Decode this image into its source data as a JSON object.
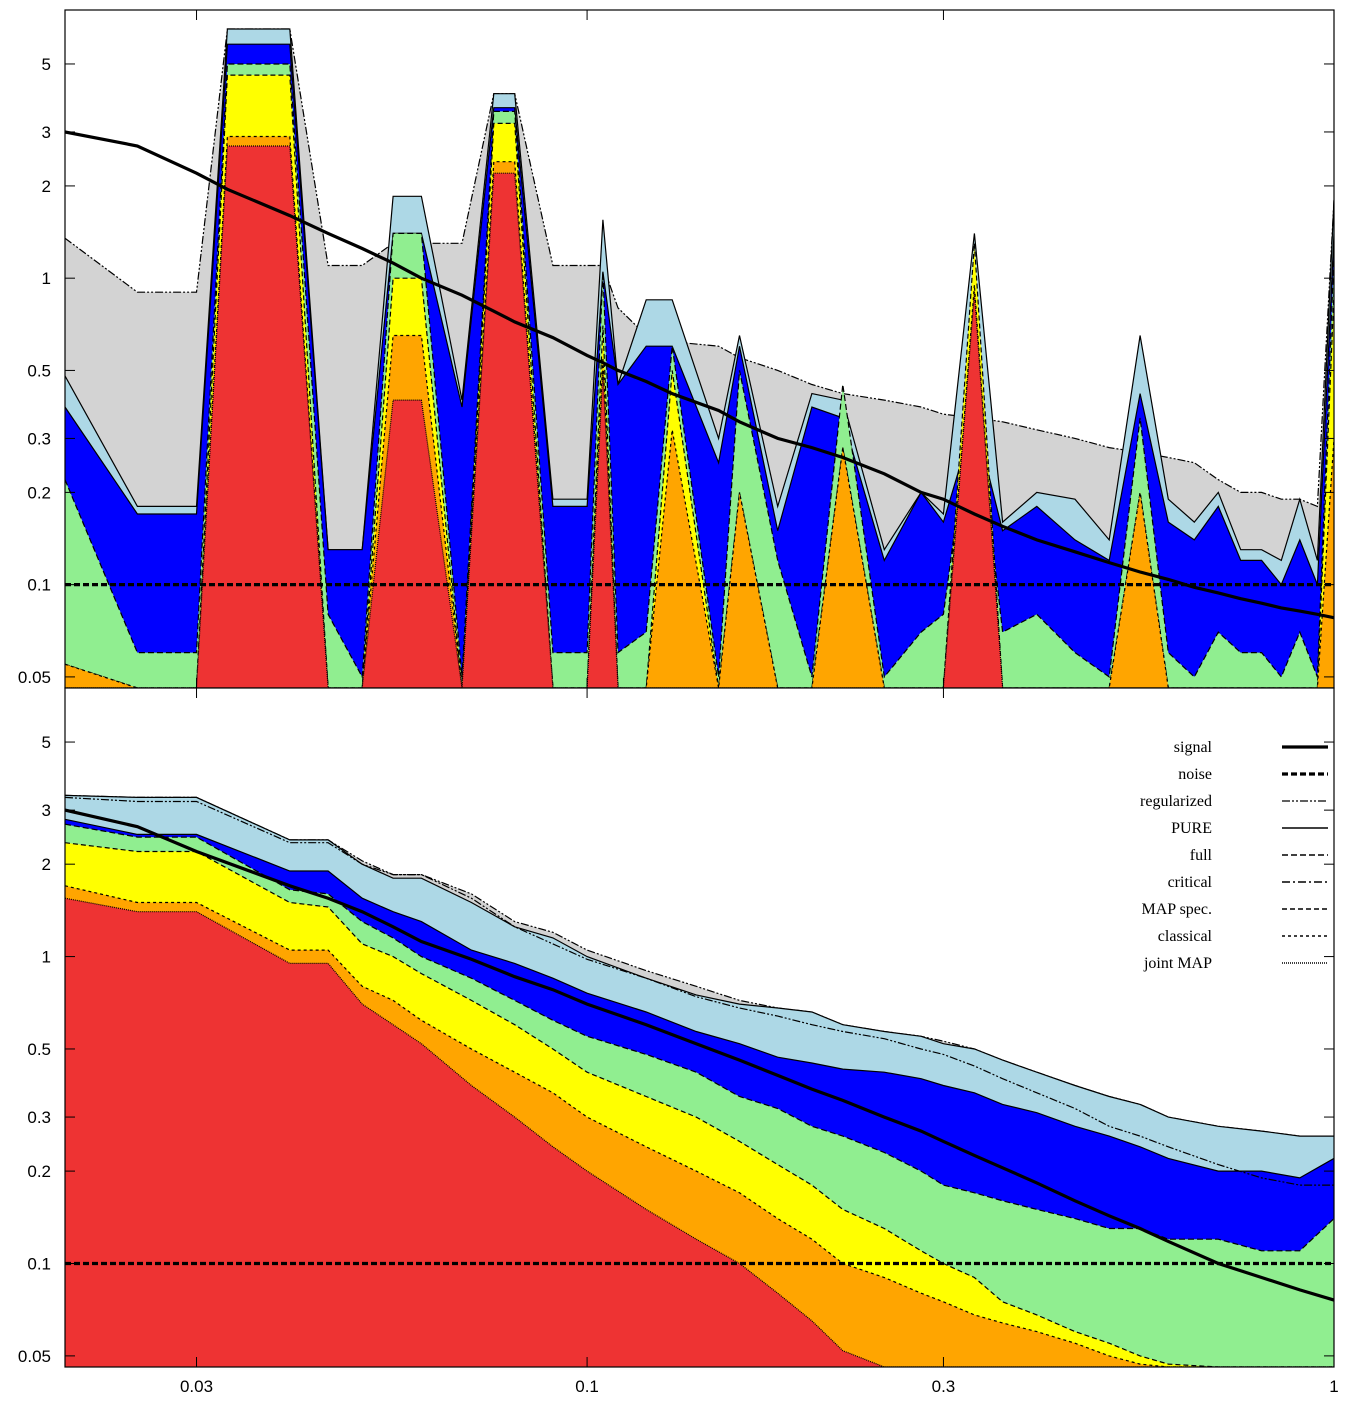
{
  "chart_data": [
    {
      "type": "area",
      "panel": "top",
      "xscale": "log",
      "yscale": "log",
      "xlim": [
        0.02,
        1
      ],
      "ylim": [
        0.046,
        7.5
      ],
      "xticks": [
        {
          "value": 0.03,
          "label": ""
        },
        {
          "value": 0.1,
          "label": "0.1"
        },
        {
          "value": 0.3,
          "label": "0.3"
        }
      ],
      "yticks": [
        {
          "value": 0.05,
          "label": "0.05"
        },
        {
          "value": 0.1,
          "label": "0.1"
        },
        {
          "value": 0.2,
          "label": "0.2"
        },
        {
          "value": 0.3,
          "label": "0.3"
        },
        {
          "value": 0.5,
          "label": "0.5"
        },
        {
          "value": 1,
          "label": "1"
        },
        {
          "value": 2,
          "label": "2"
        },
        {
          "value": 3,
          "label": "3"
        },
        {
          "value": 5,
          "label": "5"
        }
      ],
      "grid": false,
      "x": [
        0.02,
        0.025,
        0.03,
        0.033,
        0.04,
        0.045,
        0.05,
        0.055,
        0.06,
        0.068,
        0.075,
        0.08,
        0.09,
        0.1,
        0.105,
        0.11,
        0.12,
        0.13,
        0.15,
        0.16,
        0.18,
        0.2,
        0.22,
        0.25,
        0.28,
        0.3,
        0.33,
        0.36,
        0.4,
        0.45,
        0.5,
        0.55,
        0.6,
        0.65,
        0.7,
        0.75,
        0.8,
        0.85,
        0.9,
        0.95,
        1.0
      ],
      "series": [
        {
          "name": "joint MAP",
          "fill": "#ee3333",
          "values": [
            0.04,
            0.04,
            0.04,
            2.7,
            2.7,
            0.04,
            0.04,
            0.4,
            0.4,
            0.04,
            2.2,
            2.2,
            0.04,
            0.04,
            0.5,
            0.04,
            0.04,
            0.04,
            0.04,
            0.04,
            0.04,
            0.04,
            0.04,
            0.04,
            0.04,
            0.04,
            0.9,
            0.04,
            0.04,
            0.04,
            0.04,
            0.04,
            0.04,
            0.04,
            0.04,
            0.04,
            0.04,
            0.04,
            0.04,
            0.04,
            0.04
          ]
        },
        {
          "name": "classical",
          "fill": "#ffa500",
          "values": [
            0.055,
            0.04,
            0.04,
            2.9,
            2.9,
            0.04,
            0.04,
            0.65,
            0.65,
            0.04,
            2.4,
            2.4,
            0.04,
            0.04,
            0.55,
            0.04,
            0.04,
            0.32,
            0.04,
            0.2,
            0.04,
            0.04,
            0.28,
            0.04,
            0.04,
            0.04,
            0.95,
            0.04,
            0.04,
            0.04,
            0.04,
            0.2,
            0.04,
            0.04,
            0.04,
            0.04,
            0.04,
            0.04,
            0.04,
            0.04,
            0.3
          ]
        },
        {
          "name": "MAP spec.",
          "fill": "#ffff00",
          "values": [
            0.055,
            0.04,
            0.04,
            4.6,
            4.6,
            0.04,
            0.04,
            1.0,
            1.0,
            0.04,
            3.2,
            3.2,
            0.04,
            0.04,
            0.7,
            0.04,
            0.04,
            0.5,
            0.04,
            0.2,
            0.04,
            0.04,
            0.28,
            0.04,
            0.04,
            0.04,
            1.3,
            0.04,
            0.04,
            0.04,
            0.04,
            0.2,
            0.04,
            0.04,
            0.04,
            0.04,
            0.04,
            0.04,
            0.04,
            0.04,
            0.9
          ]
        },
        {
          "name": "full",
          "fill": "#90ee90",
          "values": [
            0.22,
            0.06,
            0.06,
            5.0,
            5.0,
            0.08,
            0.05,
            1.4,
            1.4,
            0.05,
            3.5,
            3.5,
            0.06,
            0.06,
            1.05,
            0.06,
            0.07,
            0.6,
            0.05,
            0.5,
            0.12,
            0.05,
            0.45,
            0.05,
            0.07,
            0.08,
            0.45,
            0.07,
            0.08,
            0.06,
            0.05,
            0.35,
            0.06,
            0.05,
            0.07,
            0.06,
            0.06,
            0.05,
            0.07,
            0.05,
            1.2
          ]
        },
        {
          "name": "PURE",
          "fill": "#0000ff",
          "values": [
            0.38,
            0.17,
            0.17,
            5.8,
            5.8,
            0.13,
            0.13,
            1.4,
            1.4,
            0.38,
            3.6,
            3.6,
            0.18,
            0.18,
            1.05,
            0.45,
            0.6,
            0.6,
            0.25,
            0.6,
            0.15,
            0.38,
            0.35,
            0.12,
            0.2,
            0.16,
            0.35,
            0.15,
            0.18,
            0.14,
            0.12,
            0.42,
            0.16,
            0.14,
            0.18,
            0.12,
            0.12,
            0.1,
            0.14,
            0.1,
            1.4
          ]
        },
        {
          "name": "regularized",
          "fill": "#add8e6",
          "values": [
            0.48,
            0.18,
            0.18,
            6.5,
            6.5,
            0.13,
            0.13,
            1.85,
            1.85,
            0.4,
            4.0,
            4.0,
            0.19,
            0.19,
            1.55,
            0.45,
            0.85,
            0.85,
            0.3,
            0.65,
            0.18,
            0.42,
            0.4,
            0.13,
            0.2,
            0.17,
            1.4,
            0.16,
            0.2,
            0.19,
            0.14,
            0.65,
            0.19,
            0.16,
            0.2,
            0.13,
            0.13,
            0.12,
            0.19,
            0.12,
            1.8
          ]
        },
        {
          "name": "critical",
          "fill": "#d3d3d3",
          "values": [
            1.35,
            0.9,
            0.9,
            6.5,
            6.5,
            1.1,
            1.1,
            1.3,
            1.3,
            1.3,
            4.0,
            4.0,
            1.1,
            1.1,
            1.1,
            0.8,
            0.65,
            0.62,
            0.6,
            0.55,
            0.5,
            0.45,
            0.42,
            0.4,
            0.38,
            0.36,
            0.35,
            0.34,
            0.32,
            0.3,
            0.28,
            0.27,
            0.26,
            0.25,
            0.22,
            0.2,
            0.2,
            0.19,
            0.19,
            0.18,
            1.8
          ]
        }
      ],
      "lines": [
        {
          "name": "signal",
          "values": [
            3.0,
            2.7,
            2.2,
            1.95,
            1.6,
            1.4,
            1.25,
            1.12,
            1.0,
            0.88,
            0.78,
            0.72,
            0.64,
            0.56,
            0.53,
            0.5,
            0.46,
            0.42,
            0.37,
            0.34,
            0.3,
            0.28,
            0.26,
            0.23,
            0.2,
            0.19,
            0.17,
            0.155,
            0.14,
            0.128,
            0.118,
            0.11,
            0.104,
            0.098,
            0.094,
            0.09,
            0.087,
            0.084,
            0.082,
            0.08,
            0.078
          ]
        },
        {
          "name": "noise",
          "values": [
            0.1,
            0.1,
            0.1,
            0.1,
            0.1,
            0.1,
            0.1,
            0.1,
            0.1,
            0.1,
            0.1,
            0.1,
            0.1,
            0.1,
            0.1,
            0.1,
            0.1,
            0.1,
            0.1,
            0.1,
            0.1,
            0.1,
            0.1,
            0.1,
            0.1,
            0.1,
            0.1,
            0.1,
            0.1,
            0.1,
            0.1,
            0.1,
            0.1,
            0.1,
            0.1,
            0.1,
            0.1,
            0.1,
            0.1,
            0.1,
            0.1
          ]
        }
      ]
    },
    {
      "type": "area",
      "panel": "bottom",
      "xscale": "log",
      "yscale": "log",
      "xlim": [
        0.02,
        1
      ],
      "ylim": [
        0.046,
        7.5
      ],
      "xticks": [
        {
          "value": 0.03,
          "label": "0.03"
        },
        {
          "value": 0.1,
          "label": "0.1"
        },
        {
          "value": 0.3,
          "label": "0.3"
        },
        {
          "value": 1,
          "label": "1"
        }
      ],
      "yticks": [
        {
          "value": 0.05,
          "label": "0.05"
        },
        {
          "value": 0.1,
          "label": "0.1"
        },
        {
          "value": 0.2,
          "label": "0.2"
        },
        {
          "value": 0.3,
          "label": "0.3"
        },
        {
          "value": 0.5,
          "label": "0.5"
        },
        {
          "value": 1,
          "label": "1"
        },
        {
          "value": 2,
          "label": "2"
        },
        {
          "value": 3,
          "label": "3"
        },
        {
          "value": 5,
          "label": "5"
        }
      ],
      "grid": false,
      "legend_position": "top-right",
      "x": [
        0.02,
        0.025,
        0.03,
        0.04,
        0.045,
        0.05,
        0.055,
        0.06,
        0.07,
        0.08,
        0.09,
        0.1,
        0.12,
        0.14,
        0.16,
        0.18,
        0.2,
        0.22,
        0.25,
        0.28,
        0.3,
        0.33,
        0.36,
        0.4,
        0.45,
        0.5,
        0.55,
        0.6,
        0.7,
        0.8,
        0.9,
        1.0
      ],
      "series": [
        {
          "name": "joint MAP",
          "fill": "#ee3333",
          "values": [
            1.55,
            1.4,
            1.4,
            0.95,
            0.95,
            0.7,
            0.6,
            0.52,
            0.38,
            0.3,
            0.24,
            0.2,
            0.15,
            0.12,
            0.1,
            0.08,
            0.065,
            0.052,
            0.046,
            0.046,
            0.046,
            0.046,
            0.046,
            0.046,
            0.046,
            0.046,
            0.046,
            0.046,
            0.046,
            0.046,
            0.046,
            0.046
          ]
        },
        {
          "name": "classical",
          "fill": "#ffa500",
          "values": [
            1.7,
            1.5,
            1.5,
            1.05,
            1.05,
            0.8,
            0.72,
            0.62,
            0.5,
            0.42,
            0.36,
            0.3,
            0.24,
            0.2,
            0.17,
            0.14,
            0.12,
            0.1,
            0.09,
            0.08,
            0.075,
            0.068,
            0.064,
            0.06,
            0.055,
            0.05,
            0.047,
            0.046,
            0.046,
            0.046,
            0.046,
            0.046
          ]
        },
        {
          "name": "MAP spec.",
          "fill": "#ffff00",
          "values": [
            2.35,
            2.2,
            2.2,
            1.5,
            1.45,
            1.1,
            1.0,
            0.88,
            0.72,
            0.6,
            0.5,
            0.42,
            0.35,
            0.3,
            0.25,
            0.21,
            0.18,
            0.15,
            0.13,
            0.11,
            0.1,
            0.09,
            0.075,
            0.068,
            0.06,
            0.055,
            0.05,
            0.047,
            0.046,
            0.046,
            0.046,
            0.046
          ]
        },
        {
          "name": "full",
          "fill": "#90ee90",
          "values": [
            2.7,
            2.45,
            2.45,
            1.65,
            1.6,
            1.3,
            1.15,
            1.0,
            0.85,
            0.72,
            0.62,
            0.55,
            0.48,
            0.42,
            0.35,
            0.32,
            0.28,
            0.26,
            0.23,
            0.2,
            0.18,
            0.17,
            0.16,
            0.15,
            0.14,
            0.13,
            0.13,
            0.12,
            0.12,
            0.11,
            0.11,
            0.14
          ]
        },
        {
          "name": "PURE",
          "fill": "#0000ff",
          "values": [
            2.8,
            2.5,
            2.5,
            1.9,
            1.9,
            1.55,
            1.4,
            1.3,
            1.05,
            0.95,
            0.85,
            0.76,
            0.66,
            0.57,
            0.52,
            0.47,
            0.45,
            0.43,
            0.42,
            0.4,
            0.38,
            0.36,
            0.33,
            0.31,
            0.28,
            0.26,
            0.24,
            0.22,
            0.2,
            0.2,
            0.19,
            0.22
          ]
        },
        {
          "name": "regularized",
          "fill": "#add8e6",
          "values": [
            3.35,
            3.3,
            3.3,
            2.4,
            2.4,
            2.0,
            1.8,
            1.8,
            1.5,
            1.25,
            1.15,
            1.0,
            0.85,
            0.75,
            0.7,
            0.68,
            0.66,
            0.6,
            0.57,
            0.55,
            0.52,
            0.5,
            0.46,
            0.42,
            0.38,
            0.35,
            0.33,
            0.3,
            0.28,
            0.27,
            0.26,
            0.26
          ]
        },
        {
          "name": "critical",
          "fill": "#d3d3d3",
          "values": [
            3.35,
            3.3,
            3.3,
            2.4,
            2.4,
            2.05,
            1.85,
            1.85,
            1.6,
            1.3,
            1.2,
            1.05,
            0.9,
            0.8,
            0.72,
            0.68,
            0.66,
            0.6,
            0.57,
            0.55,
            0.53,
            0.5,
            0.46,
            0.42,
            0.38,
            0.35,
            0.33,
            0.3,
            0.28,
            0.27,
            0.26,
            0.26
          ]
        }
      ],
      "lines": [
        {
          "name": "signal",
          "values": [
            3.0,
            2.65,
            2.2,
            1.7,
            1.55,
            1.4,
            1.25,
            1.12,
            0.98,
            0.86,
            0.78,
            0.7,
            0.6,
            0.52,
            0.46,
            0.41,
            0.37,
            0.34,
            0.3,
            0.27,
            0.25,
            0.225,
            0.205,
            0.183,
            0.16,
            0.143,
            0.13,
            0.118,
            0.1,
            0.09,
            0.082,
            0.076
          ]
        },
        {
          "name": "noise",
          "values": [
            0.1,
            0.1,
            0.1,
            0.1,
            0.1,
            0.1,
            0.1,
            0.1,
            0.1,
            0.1,
            0.1,
            0.1,
            0.1,
            0.1,
            0.1,
            0.1,
            0.1,
            0.1,
            0.1,
            0.1,
            0.1,
            0.1,
            0.1,
            0.1,
            0.1,
            0.1,
            0.1,
            0.1,
            0.1,
            0.1,
            0.1,
            0.1
          ]
        },
        {
          "name": "regularized",
          "values": [
            3.3,
            3.2,
            3.2,
            2.35,
            2.35,
            2.0,
            1.85,
            1.85,
            1.55,
            1.25,
            1.1,
            0.98,
            0.85,
            0.74,
            0.68,
            0.64,
            0.6,
            0.57,
            0.54,
            0.5,
            0.48,
            0.44,
            0.4,
            0.36,
            0.32,
            0.28,
            0.26,
            0.24,
            0.21,
            0.19,
            0.18,
            0.18
          ]
        }
      ],
      "legend": [
        {
          "label": "signal",
          "stroke": "#000000",
          "width": 3.2,
          "dash": ""
        },
        {
          "label": "noise",
          "stroke": "#000000",
          "width": 3.2,
          "dash": "6 3"
        },
        {
          "label": "regularized",
          "stroke": "#000000",
          "width": 1.2,
          "dash": "8 2 2 2 2 2"
        },
        {
          "label": "PURE",
          "stroke": "#000000",
          "width": 1.5,
          "dash": ""
        },
        {
          "label": "full",
          "stroke": "#000000",
          "width": 1.5,
          "dash": "6 3"
        },
        {
          "label": "critical",
          "stroke": "#000000",
          "width": 1.5,
          "dash": "8 3 2 3"
        },
        {
          "label": "MAP spec.",
          "stroke": "#000000",
          "width": 1.5,
          "dash": "5 3"
        },
        {
          "label": "classical",
          "stroke": "#000000",
          "width": 1.5,
          "dash": "3 3"
        },
        {
          "label": "joint MAP",
          "stroke": "#000000",
          "width": 1.5,
          "dash": "1 1"
        }
      ]
    }
  ]
}
